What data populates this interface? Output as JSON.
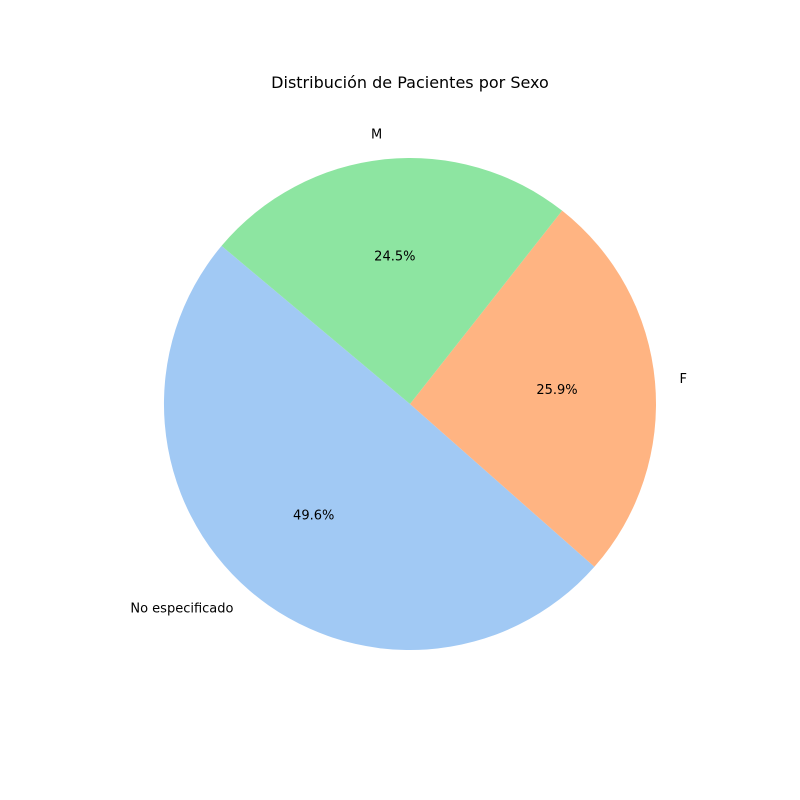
{
  "chart_data": {
    "type": "pie",
    "title": "Distribución de Pacientes por Sexo",
    "start_angle_deg": 140,
    "counterclock": true,
    "slices": [
      {
        "label": "No especificado",
        "value": 49.6,
        "pct_label": "49.6%",
        "color": "#a1c9f4"
      },
      {
        "label": "F",
        "value": 25.9,
        "pct_label": "25.9%",
        "color": "#ffb482"
      },
      {
        "label": "M",
        "value": 24.5,
        "pct_label": "24.5%",
        "color": "#8de5a1"
      }
    ]
  }
}
